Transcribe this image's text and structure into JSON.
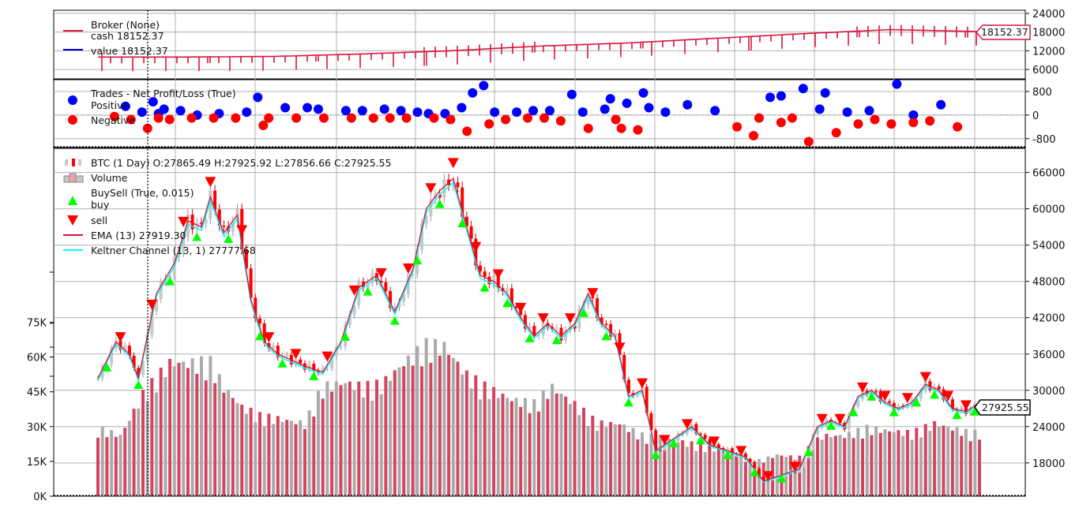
{
  "chart_data": [
    {
      "type": "line",
      "panel": "broker",
      "legend": [
        {
          "label": "Broker (None)",
          "color": "#dc143c"
        },
        {
          "label": "cash 18152.37",
          "color": null
        },
        {
          "label": "value 18152.37",
          "color": "#0000cc"
        }
      ],
      "yticks": [
        "6000",
        "12000",
        "18000",
        "24000"
      ],
      "ylim": [
        3000,
        25000
      ],
      "last_value_label": "18152.37",
      "series": [
        {
          "name": "cash",
          "x": [
            0,
            10,
            20,
            30,
            40,
            50,
            60,
            70,
            80,
            90,
            100
          ],
          "values": [
            10000,
            10000,
            10200,
            11000,
            12000,
            13500,
            14500,
            16000,
            17500,
            18800,
            18152.37
          ]
        },
        {
          "name": "value",
          "x": [
            0,
            10,
            20,
            30,
            40,
            50,
            60,
            70,
            80,
            90,
            100
          ],
          "values": [
            10000,
            10000,
            10200,
            11000,
            12000,
            13500,
            14500,
            16000,
            17500,
            18800,
            18152.37
          ]
        }
      ]
    },
    {
      "type": "scatter",
      "panel": "trades",
      "legend": [
        {
          "label": "Trades - Net Profit/Loss (True)",
          "color": null
        },
        {
          "label": "Positive",
          "color": "#0000ff"
        },
        {
          "label": "Negative",
          "color": "#ff0000"
        }
      ],
      "yticks": [
        "-800",
        "0",
        "800"
      ],
      "ylim": [
        -1100,
        1200
      ],
      "series": [
        {
          "name": "Positive",
          "color": "#0000ff",
          "points": [
            [
              5,
              300
            ],
            [
              8,
              100
            ],
            [
              10,
              450
            ],
            [
              11,
              50
            ],
            [
              12,
              200
            ],
            [
              15,
              150
            ],
            [
              18,
              0
            ],
            [
              22,
              50
            ],
            [
              27,
              100
            ],
            [
              29,
              600
            ],
            [
              34,
              250
            ],
            [
              38,
              250
            ],
            [
              40,
              200
            ],
            [
              45,
              150
            ],
            [
              48,
              150
            ],
            [
              52,
              200
            ],
            [
              55,
              150
            ],
            [
              58,
              100
            ],
            [
              60,
              50
            ],
            [
              63,
              50
            ],
            [
              66,
              250
            ],
            [
              68,
              750
            ],
            [
              70,
              1000
            ],
            [
              72,
              100
            ],
            [
              76,
              100
            ],
            [
              79,
              150
            ],
            [
              82,
              150
            ],
            [
              86,
              700
            ],
            [
              88,
              100
            ],
            [
              92,
              200
            ],
            [
              93,
              550
            ],
            [
              96,
              400
            ],
            [
              99,
              750
            ],
            [
              100,
              250
            ],
            [
              103,
              100
            ],
            [
              107,
              350
            ],
            [
              112,
              150
            ],
            [
              122,
              600
            ],
            [
              124,
              650
            ],
            [
              128,
              900
            ],
            [
              131,
              200
            ],
            [
              132,
              750
            ],
            [
              136,
              100
            ],
            [
              140,
              150
            ],
            [
              145,
              1050
            ],
            [
              148,
              0
            ],
            [
              153,
              350
            ]
          ]
        },
        {
          "name": "Negative",
          "color": "#ff0000",
          "points": [
            [
              3,
              -50
            ],
            [
              6,
              -150
            ],
            [
              9,
              -450
            ],
            [
              11,
              -100
            ],
            [
              13,
              -150
            ],
            [
              17,
              -100
            ],
            [
              21,
              -100
            ],
            [
              25,
              -100
            ],
            [
              30,
              -350
            ],
            [
              31,
              -100
            ],
            [
              36,
              -100
            ],
            [
              41,
              -100
            ],
            [
              46,
              -100
            ],
            [
              50,
              -100
            ],
            [
              53,
              -100
            ],
            [
              56,
              -100
            ],
            [
              61,
              -100
            ],
            [
              64,
              -150
            ],
            [
              67,
              -550
            ],
            [
              71,
              -300
            ],
            [
              74,
              -150
            ],
            [
              78,
              -100
            ],
            [
              81,
              -100
            ],
            [
              84,
              -200
            ],
            [
              89,
              -450
            ],
            [
              94,
              -150
            ],
            [
              95,
              -450
            ],
            [
              98,
              -500
            ],
            [
              116,
              -400
            ],
            [
              119,
              -700
            ],
            [
              120,
              -100
            ],
            [
              124,
              -250
            ],
            [
              126,
              -100
            ],
            [
              129,
              -900
            ],
            [
              134,
              -600
            ],
            [
              138,
              -300
            ],
            [
              141,
              -150
            ],
            [
              144,
              -300
            ],
            [
              148,
              -250
            ],
            [
              151,
              -200
            ],
            [
              156,
              -400
            ]
          ]
        }
      ]
    },
    {
      "type": "candlestick",
      "panel": "price",
      "legend": [
        {
          "label": "BTC (1 Day) O:27865.49 H:27925.92 L:27856.66 C:27925.55",
          "icon": "candle"
        },
        {
          "label": "Volume",
          "icon": "volume"
        },
        {
          "label": "BuySell (True, 0.015)",
          "icon": "none"
        },
        {
          "label": "buy",
          "icon": "up-triangle",
          "color": "#00ff00"
        },
        {
          "label": "sell",
          "icon": "down-triangle",
          "color": "#ff0000"
        },
        {
          "label": "EMA (13) 27919.30",
          "icon": "line",
          "color": "#dc143c"
        },
        {
          "label": "Keltner Channel (13, 1) 27777.68",
          "icon": "line",
          "color": "#00ffff"
        }
      ],
      "yticks_right": [
        "18000",
        "24000",
        "30000",
        "36000",
        "42000",
        "48000",
        "54000",
        "60000",
        "66000"
      ],
      "yticks_left": [
        "0K",
        "15K",
        "30K",
        "45K",
        "60K",
        "75K"
      ],
      "ylim": [
        12500,
        70000
      ],
      "volume_ylim": [
        0,
        150000
      ],
      "last_close_label": "27925.55",
      "price_anchors": [
        [
          0,
          32000
        ],
        [
          4,
          38000
        ],
        [
          7,
          36000
        ],
        [
          9,
          32000
        ],
        [
          13,
          46000
        ],
        [
          17,
          51000
        ],
        [
          20,
          58000
        ],
        [
          23,
          57000
        ],
        [
          25,
          62000
        ],
        [
          28,
          56000
        ],
        [
          31,
          59000
        ],
        [
          34,
          45000
        ],
        [
          37,
          38000
        ],
        [
          40,
          36000
        ],
        [
          43,
          35000
        ],
        [
          46,
          34000
        ],
        [
          50,
          33000
        ],
        [
          54,
          38000
        ],
        [
          58,
          47000
        ],
        [
          62,
          49000
        ],
        [
          66,
          43000
        ],
        [
          70,
          50000
        ],
        [
          73,
          60000
        ],
        [
          76,
          63000
        ],
        [
          79,
          65000
        ],
        [
          82,
          57000
        ],
        [
          85,
          49000
        ],
        [
          88,
          48000
        ],
        [
          91,
          46000
        ],
        [
          94,
          42000
        ],
        [
          97,
          39000
        ],
        [
          100,
          41000
        ],
        [
          103,
          39000
        ],
        [
          106,
          41000
        ],
        [
          109,
          46000
        ],
        [
          112,
          41000
        ],
        [
          115,
          39000
        ],
        [
          118,
          29000
        ],
        [
          121,
          30000
        ],
        [
          124,
          20000
        ],
        [
          128,
          22000
        ],
        [
          132,
          24000
        ],
        [
          136,
          21000
        ],
        [
          140,
          20000
        ],
        [
          144,
          19000
        ],
        [
          148,
          15000
        ],
        [
          152,
          16000
        ],
        [
          156,
          17000
        ],
        [
          160,
          24000
        ],
        [
          163,
          25000
        ],
        [
          166,
          24000
        ],
        [
          169,
          29000
        ],
        [
          172,
          30000
        ],
        [
          175,
          28000
        ],
        [
          178,
          27000
        ],
        [
          181,
          28000
        ],
        [
          184,
          31000
        ],
        [
          187,
          30000
        ],
        [
          190,
          27000
        ],
        [
          193,
          26500
        ],
        [
          196,
          27925
        ]
      ],
      "volume_anchors": [
        [
          0,
          28000
        ],
        [
          5,
          25000
        ],
        [
          10,
          42000
        ],
        [
          16,
          55000
        ],
        [
          20,
          55000
        ],
        [
          25,
          55000
        ],
        [
          28,
          45000
        ],
        [
          32,
          37000
        ],
        [
          36,
          33000
        ],
        [
          40,
          32000
        ],
        [
          46,
          30000
        ],
        [
          50,
          45000
        ],
        [
          55,
          47000
        ],
        [
          59,
          45000
        ],
        [
          63,
          46000
        ],
        [
          68,
          55000
        ],
        [
          73,
          62000
        ],
        [
          77,
          62000
        ],
        [
          82,
          50000
        ],
        [
          86,
          45000
        ],
        [
          92,
          40000
        ],
        [
          97,
          38000
        ],
        [
          101,
          45000
        ],
        [
          106,
          38000
        ],
        [
          111,
          30000
        ],
        [
          116,
          30000
        ],
        [
          121,
          25000
        ],
        [
          126,
          24000
        ],
        [
          131,
          22000
        ],
        [
          136,
          20000
        ],
        [
          141,
          18000
        ],
        [
          146,
          14000
        ],
        [
          151,
          17000
        ],
        [
          156,
          16000
        ],
        [
          161,
          25000
        ],
        [
          166,
          25000
        ],
        [
          171,
          28000
        ],
        [
          176,
          27000
        ],
        [
          181,
          26000
        ],
        [
          186,
          30000
        ],
        [
          190,
          28000
        ],
        [
          194,
          26000
        ],
        [
          196,
          26000
        ]
      ],
      "buy_idx": [
        2,
        9,
        16,
        22,
        29,
        36,
        41,
        48,
        55,
        60,
        66,
        71,
        76,
        81,
        86,
        91,
        96,
        102,
        108,
        113,
        118,
        124,
        128,
        134,
        140,
        146,
        152,
        158,
        163,
        168,
        172,
        177,
        182,
        186,
        191,
        195
      ],
      "sell_idx": [
        5,
        12,
        19,
        25,
        32,
        38,
        44,
        51,
        57,
        63,
        69,
        74,
        79,
        84,
        89,
        94,
        99,
        105,
        110,
        116,
        121,
        126,
        131,
        137,
        143,
        149,
        155,
        161,
        165,
        170,
        175,
        180,
        184,
        189,
        193
      ]
    }
  ]
}
